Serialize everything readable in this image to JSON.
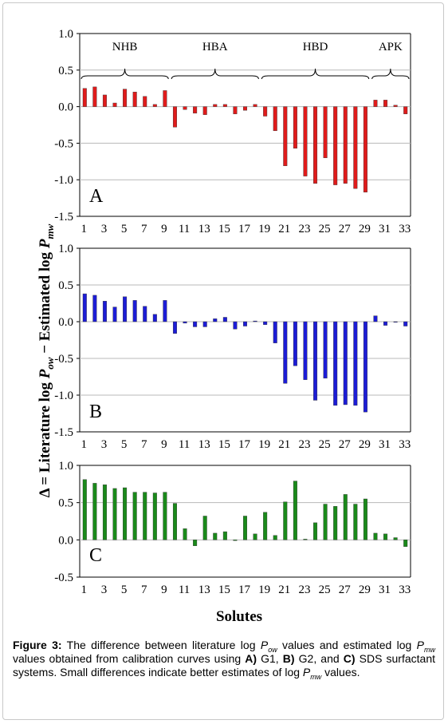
{
  "chart_data": {
    "type": "bar",
    "ylabel_parts": [
      "Δ = Literature log ",
      "P",
      "ow",
      " − Estimated log ",
      "P",
      "mw"
    ],
    "xlabel": "Solutes",
    "x_ticks": [
      "1",
      "3",
      "5",
      "7",
      "9",
      "11",
      "13",
      "15",
      "17",
      "19",
      "21",
      "23",
      "25",
      "27",
      "29",
      "31",
      "33"
    ],
    "categories": [
      "1",
      "2",
      "3",
      "4",
      "5",
      "6",
      "7",
      "8",
      "9",
      "10",
      "11",
      "12",
      "13",
      "14",
      "15",
      "16",
      "17",
      "18",
      "19",
      "20",
      "21",
      "22",
      "23",
      "24",
      "25",
      "26",
      "27",
      "28",
      "29",
      "30",
      "31",
      "32",
      "33"
    ],
    "groups": [
      {
        "label": "NHB",
        "from": 1,
        "to": 9
      },
      {
        "label": "HBA",
        "from": 10,
        "to": 18
      },
      {
        "label": "HBD",
        "from": 19,
        "to": 29
      },
      {
        "label": "APK",
        "from": 30,
        "to": 33
      }
    ],
    "panels": [
      {
        "label": "A",
        "color": "#e01b1b",
        "ylim": [
          -1.5,
          1.0
        ],
        "yticks": [
          "1.0",
          "0.5",
          "0.0",
          "-0.5",
          "-1.0",
          "-1.5"
        ],
        "ytick_values": [
          1.0,
          0.5,
          0.0,
          -0.5,
          -1.0,
          -1.5
        ],
        "values": [
          0.25,
          0.27,
          0.16,
          0.05,
          0.24,
          0.2,
          0.14,
          0.03,
          0.22,
          -0.28,
          -0.04,
          -0.09,
          -0.11,
          0.03,
          0.03,
          -0.1,
          -0.05,
          0.03,
          -0.13,
          -0.33,
          -0.81,
          -0.57,
          -0.95,
          -1.05,
          -0.7,
          -1.07,
          -1.05,
          -1.12,
          -1.17,
          0.09,
          0.09,
          0.02,
          -0.1
        ]
      },
      {
        "label": "B",
        "color": "#1c1cd6",
        "ylim": [
          -1.5,
          1.0
        ],
        "yticks": [
          "1.0",
          "0.5",
          "0.0",
          "-0.5",
          "-1.0",
          "-1.5"
        ],
        "ytick_values": [
          1.0,
          0.5,
          0.0,
          -0.5,
          -1.0,
          -1.5
        ],
        "values": [
          0.38,
          0.36,
          0.28,
          0.2,
          0.34,
          0.29,
          0.21,
          0.1,
          0.29,
          -0.16,
          -0.02,
          -0.07,
          -0.07,
          0.04,
          0.06,
          -0.1,
          -0.06,
          0.01,
          -0.04,
          -0.29,
          -0.84,
          -0.6,
          -0.79,
          -1.07,
          -0.77,
          -1.14,
          -1.13,
          -1.14,
          -1.23,
          0.08,
          -0.05,
          0.0,
          -0.06
        ]
      },
      {
        "label": "C",
        "color": "#1a8a1a",
        "ylim": [
          -0.5,
          1.0
        ],
        "yticks": [
          "1.0",
          "0.5",
          "0.0",
          "-0.5"
        ],
        "ytick_values": [
          1.0,
          0.5,
          0.0,
          -0.5
        ],
        "values": [
          0.81,
          0.76,
          0.74,
          0.69,
          0.7,
          0.64,
          0.64,
          0.63,
          0.64,
          0.49,
          0.15,
          -0.08,
          0.32,
          0.09,
          0.11,
          -0.01,
          0.32,
          0.08,
          0.37,
          0.06,
          0.51,
          0.79,
          0.01,
          0.23,
          0.48,
          0.45,
          0.61,
          0.48,
          0.55,
          0.09,
          0.08,
          0.03,
          -0.09
        ]
      }
    ]
  },
  "caption": {
    "label": "Figure 3:",
    "t1": " The difference between literature log ",
    "p1": "P",
    "s1": "ow",
    "t2": " values and estimated log ",
    "p2": "P",
    "s2": "mw",
    "t3": " values obtained from calibration curves using ",
    "A": "A)",
    "t4": " G1, ",
    "B": "B)",
    "t5": " G2, and ",
    "C": "C)",
    "t6": " SDS surfactant systems. Small differences indicate better estimates of log ",
    "p3": "P",
    "s3": "mw",
    "t7": " values."
  }
}
